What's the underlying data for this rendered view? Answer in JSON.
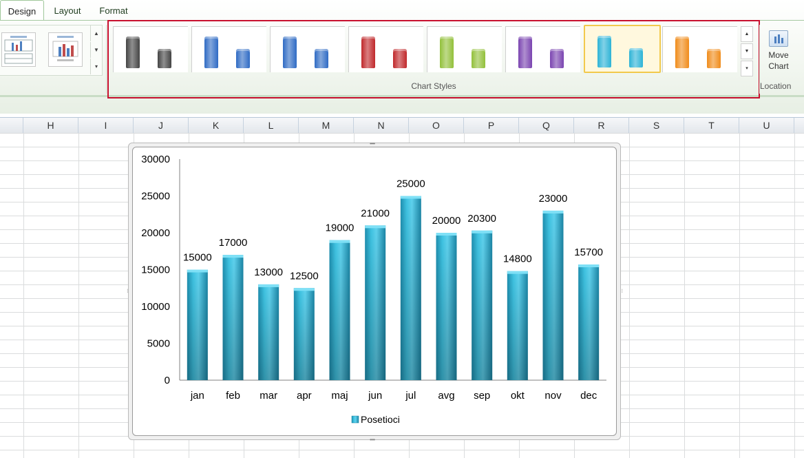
{
  "ribbon": {
    "tabs": [
      {
        "label": "Design",
        "active": true
      },
      {
        "label": "Layout",
        "active": false
      },
      {
        "label": "Format",
        "active": false
      }
    ],
    "chart_layouts": [
      "layout-1",
      "layout-2"
    ],
    "chart_styles": {
      "group_label": "Chart Styles",
      "styles": [
        {
          "color": "#444444",
          "selected": false
        },
        {
          "color": "#2f6bc4",
          "selected": false
        },
        {
          "color": "#2f6bc4",
          "selected": false
        },
        {
          "color": "#c0282b",
          "selected": false
        },
        {
          "color": "#92c03a",
          "selected": false
        },
        {
          "color": "#7a44b0",
          "selected": false
        },
        {
          "color": "#2db3d6",
          "selected": true
        },
        {
          "color": "#f08c1b",
          "selected": false
        }
      ]
    },
    "move_chart": {
      "line1": "Move",
      "line2": "Chart"
    },
    "location_label": "Location"
  },
  "columns": [
    "H",
    "I",
    "J",
    "K",
    "L",
    "M",
    "N",
    "O",
    "P",
    "Q",
    "R",
    "S",
    "T",
    "U"
  ],
  "chart_data": {
    "type": "bar",
    "categories": [
      "jan",
      "feb",
      "mar",
      "apr",
      "maj",
      "jun",
      "jul",
      "avg",
      "sep",
      "okt",
      "nov",
      "dec"
    ],
    "series": [
      {
        "name": "Posetioci",
        "values": [
          15000,
          17000,
          13000,
          12500,
          19000,
          21000,
          25000,
          20000,
          20300,
          14800,
          23000,
          15700
        ]
      }
    ],
    "ylim": [
      0,
      30000
    ],
    "yticks": [
      0,
      5000,
      10000,
      15000,
      20000,
      25000,
      30000
    ],
    "data_labels": true,
    "legend": "bottom",
    "grid": false,
    "bar_color": "#2db3d6"
  }
}
